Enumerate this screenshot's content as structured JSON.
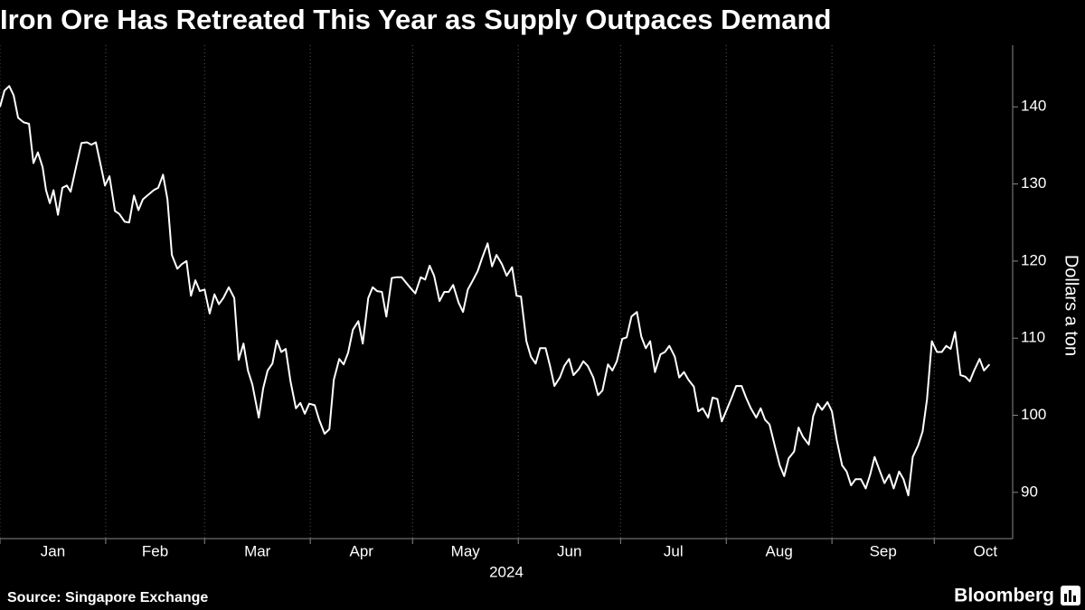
{
  "chart_data": {
    "type": "line",
    "title": "Iron Ore Has Retreated This Year as Supply Outpaces Demand",
    "ylabel": "Dollars a ton",
    "x_sublabel": "2024",
    "source": "Source: Singapore Exchange",
    "brand": "Bloomberg",
    "x": [
      0,
      1.3,
      2.7,
      4,
      5.3,
      6.9,
      8.5,
      9.8,
      11.1,
      12.5,
      13.5,
      14.6,
      15.7,
      17,
      18.3,
      19.6,
      20.7,
      22.3,
      23.9,
      25.5,
      26.8,
      28.1,
      29.4,
      30.8,
      32.1,
      33.7,
      35,
      36.6,
      37.9,
      39.3,
      40.6,
      41.9,
      43.5,
      45.1,
      46.4,
      47.8,
      49.1,
      50.4,
      52,
      53.3,
      54.7,
      56,
      57.3,
      58.6,
      60,
      61.5,
      62.9,
      64.2,
      65.5,
      67.1,
      68.7,
      70,
      71.4,
      72.7,
      74,
      75.9,
      77.2,
      78.5,
      79.9,
      81.2,
      82.5,
      83.8,
      85.2,
      86.8,
      88.1,
      89.4,
      90.7,
      92.3,
      93.6,
      95.2,
      96.6,
      97.9,
      99.5,
      100.8,
      102.1,
      103.5,
      105.1,
      106.4,
      108,
      109.3,
      110.6,
      112,
      113.3,
      114.9,
      116.2,
      117.8,
      119.1,
      120.4,
      121.8,
      123.4,
      124.7,
      126,
      127.3,
      128.9,
      130.3,
      131.6,
      132.9,
      134.5,
      135.8,
      137.2,
      138.7,
      140.1,
      141.4,
      143,
      144.3,
      145.6,
      147.2,
      148.6,
      150.2,
      151.5,
      152.8,
      154.4,
      155.7,
      157.1,
      158.4,
      160,
      161.3,
      162.6,
      164.2,
      165.5,
      166.9,
      168.2,
      169.8,
      171.1,
      172.4,
      174,
      175.4,
      176.7,
      178.3,
      179.6,
      180.9,
      182.5,
      183.8,
      185.2,
      186.8,
      188.1,
      189.4,
      190.7,
      192.1,
      193.7,
      195,
      196.3,
      197.9,
      199.2,
      200.6,
      201.9,
      203.5,
      204.8,
      206.1,
      207.7,
      209,
      210.4,
      211.7,
      213.3,
      214.6,
      215.9,
      217.5,
      218.8,
      220.2,
      221.8,
      223.1,
      224.4,
      225.7,
      227.3,
      228.7,
      230,
      231.3,
      232.9,
      234.2,
      235.5,
      237.2,
      238.5,
      239.8,
      241.1,
      242.7,
      244,
      245.4,
      247,
      248.3,
      249.6,
      250.9,
      252.5,
      253.9,
      255.2,
      256.5,
      258.1,
      259.4,
      260.8,
      262.1,
      263.7,
      265,
      266.4,
      267.7,
      269.3,
      270.6,
      271.9,
      273.3,
      274.8,
      276.2,
      277.5,
      278.8,
      280.1,
      281.7,
      283.1,
      284.4,
      285.7,
      287.3,
      288.6,
      290.2
    ],
    "series": [
      {
        "name": "Iron ore",
        "color": "#ffffff",
        "values": [
          140,
          142.1,
          142.7,
          141.5,
          138.6,
          138,
          137.8,
          132.7,
          134.1,
          132.2,
          129.2,
          127.5,
          129.2,
          126,
          129.5,
          129.8,
          129,
          132.2,
          135.3,
          135.4,
          135.1,
          135.4,
          132.7,
          129.8,
          131,
          126.5,
          126.1,
          125.1,
          125,
          128.5,
          126.6,
          128,
          128.6,
          129.2,
          129.5,
          131.2,
          128,
          120.8,
          119,
          119.6,
          120,
          115.5,
          117.5,
          116.1,
          116.3,
          113.2,
          115.7,
          114.4,
          115.2,
          116.6,
          115.2,
          107.2,
          109.3,
          105.8,
          104,
          99.7,
          103.5,
          105.8,
          106.7,
          109.7,
          108.2,
          108.6,
          104.4,
          100.9,
          101.6,
          100.2,
          101.5,
          101.3,
          99.4,
          97.6,
          98.2,
          104.6,
          107.3,
          106.6,
          108.1,
          111.1,
          112.2,
          109.3,
          115.2,
          116.6,
          116.1,
          116,
          112.8,
          117.8,
          117.9,
          117.9,
          117.2,
          116.5,
          115.8,
          117.9,
          117.6,
          119.4,
          118.1,
          114.8,
          116,
          116,
          116.9,
          114.6,
          113.4,
          116.3,
          117.5,
          118.7,
          120.4,
          122.3,
          119.3,
          120.8,
          119.6,
          118.1,
          119.2,
          115.5,
          115.4,
          109.6,
          107.6,
          106.7,
          108.7,
          108.7,
          106.4,
          103.8,
          104.9,
          106.4,
          107.3,
          105.2,
          106,
          107,
          106.4,
          104.9,
          102.6,
          103.2,
          106.6,
          105.8,
          107,
          109.9,
          110.1,
          112.8,
          113.4,
          110.2,
          108.7,
          109.6,
          105.6,
          107.9,
          108.2,
          109,
          107.6,
          104.9,
          105.6,
          104.6,
          103.7,
          100.5,
          100.9,
          99.7,
          102.3,
          102.1,
          99.2,
          100.9,
          102.3,
          103.8,
          103.8,
          102.3,
          100.9,
          99.7,
          100.9,
          99.4,
          98.8,
          95.9,
          93.5,
          92.1,
          94.4,
          95.3,
          98.4,
          97.2,
          96.2,
          99.9,
          101.5,
          100.7,
          101.7,
          100.5,
          96.8,
          93.5,
          92.7,
          90.9,
          91.7,
          91.7,
          90.5,
          92.3,
          94.6,
          92.7,
          91.2,
          92.3,
          90.5,
          92.7,
          91.7,
          89.6,
          94.6,
          96.1,
          97.9,
          102.1,
          109.6,
          108.2,
          108.2,
          109,
          108.6,
          110.8,
          105.2,
          105,
          104.4,
          105.8,
          107.3,
          105.8,
          106.6
        ]
      }
    ],
    "xlim": [
      0,
      297
    ],
    "xticks": [
      {
        "value": 0,
        "label": "Jan"
      },
      {
        "value": 31,
        "label": "Feb"
      },
      {
        "value": 60,
        "label": "Mar"
      },
      {
        "value": 91,
        "label": "Apr"
      },
      {
        "value": 121,
        "label": "May"
      },
      {
        "value": 152,
        "label": "Jun"
      },
      {
        "value": 182,
        "label": "Jul"
      },
      {
        "value": 213,
        "label": "Aug"
      },
      {
        "value": 244,
        "label": "Sep"
      },
      {
        "value": 274,
        "label": "Oct"
      }
    ],
    "ylim": [
      84,
      148
    ],
    "yticks": [
      90,
      100,
      110,
      120,
      130,
      140
    ],
    "grid": true
  }
}
